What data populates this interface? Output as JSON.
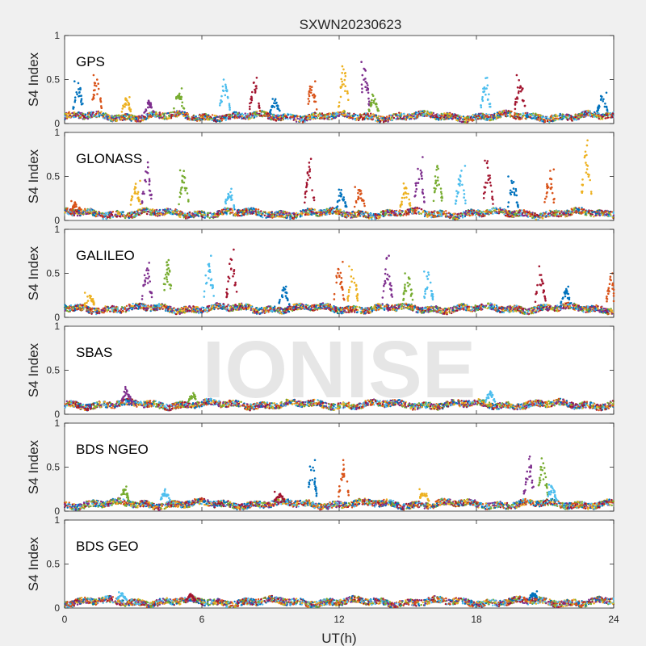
{
  "chart_data": {
    "type": "scatter",
    "title": "SXWN20230623",
    "xlabel": "UT(h)",
    "ylabel": "S4 Index",
    "xlim": [
      0,
      24
    ],
    "ylim": [
      0,
      1
    ],
    "x_ticks": [
      "0",
      "6",
      "12",
      "18",
      "24"
    ],
    "y_ticks": [
      "0",
      "0.5",
      "1"
    ],
    "watermark": "IONISE",
    "grid": false,
    "colors": [
      "#0072bd",
      "#d95319",
      "#edb120",
      "#7e2f8e",
      "#77ac30",
      "#4dbeee",
      "#a2142f"
    ],
    "panels": [
      {
        "label": "GPS",
        "baseline": 0.08,
        "spikes": [
          {
            "x": 0.6,
            "y": 0.48
          },
          {
            "x": 1.4,
            "y": 0.55
          },
          {
            "x": 2.7,
            "y": 0.3
          },
          {
            "x": 3.7,
            "y": 0.26
          },
          {
            "x": 5.0,
            "y": 0.4
          },
          {
            "x": 7.0,
            "y": 0.5
          },
          {
            "x": 8.3,
            "y": 0.52
          },
          {
            "x": 9.2,
            "y": 0.28
          },
          {
            "x": 10.8,
            "y": 0.48
          },
          {
            "x": 12.2,
            "y": 0.65
          },
          {
            "x": 13.1,
            "y": 0.7
          },
          {
            "x": 13.5,
            "y": 0.33
          },
          {
            "x": 18.4,
            "y": 0.52
          },
          {
            "x": 19.9,
            "y": 0.55
          },
          {
            "x": 23.5,
            "y": 0.35
          }
        ]
      },
      {
        "label": "GLONASS",
        "baseline": 0.08,
        "spikes": [
          {
            "x": 0.5,
            "y": 0.22
          },
          {
            "x": 3.1,
            "y": 0.45
          },
          {
            "x": 3.6,
            "y": 0.66
          },
          {
            "x": 5.2,
            "y": 0.57
          },
          {
            "x": 7.2,
            "y": 0.36
          },
          {
            "x": 10.7,
            "y": 0.7
          },
          {
            "x": 12.1,
            "y": 0.35
          },
          {
            "x": 12.9,
            "y": 0.38
          },
          {
            "x": 14.9,
            "y": 0.42
          },
          {
            "x": 15.5,
            "y": 0.72
          },
          {
            "x": 16.3,
            "y": 0.62
          },
          {
            "x": 17.3,
            "y": 0.62
          },
          {
            "x": 18.5,
            "y": 0.68
          },
          {
            "x": 19.6,
            "y": 0.5
          },
          {
            "x": 21.2,
            "y": 0.58
          },
          {
            "x": 22.8,
            "y": 0.91
          }
        ]
      },
      {
        "label": "GALILEO",
        "baseline": 0.1,
        "spikes": [
          {
            "x": 1.1,
            "y": 0.28
          },
          {
            "x": 3.6,
            "y": 0.62
          },
          {
            "x": 4.5,
            "y": 0.65
          },
          {
            "x": 6.3,
            "y": 0.7
          },
          {
            "x": 7.3,
            "y": 0.77
          },
          {
            "x": 9.6,
            "y": 0.35
          },
          {
            "x": 12.0,
            "y": 0.63
          },
          {
            "x": 12.6,
            "y": 0.58
          },
          {
            "x": 14.1,
            "y": 0.7
          },
          {
            "x": 15.0,
            "y": 0.5
          },
          {
            "x": 15.9,
            "y": 0.52
          },
          {
            "x": 20.8,
            "y": 0.58
          },
          {
            "x": 21.9,
            "y": 0.35
          },
          {
            "x": 23.9,
            "y": 0.5
          }
        ]
      },
      {
        "label": "SBAS",
        "baseline": 0.11,
        "spikes": [
          {
            "x": 2.7,
            "y": 0.31
          },
          {
            "x": 5.6,
            "y": 0.24
          },
          {
            "x": 18.6,
            "y": 0.26
          }
        ]
      },
      {
        "label": "BDS NGEO",
        "baseline": 0.08,
        "spikes": [
          {
            "x": 2.6,
            "y": 0.28
          },
          {
            "x": 4.4,
            "y": 0.25
          },
          {
            "x": 9.4,
            "y": 0.22
          },
          {
            "x": 10.8,
            "y": 0.58
          },
          {
            "x": 12.2,
            "y": 0.58
          },
          {
            "x": 15.7,
            "y": 0.25
          },
          {
            "x": 20.3,
            "y": 0.62
          },
          {
            "x": 20.9,
            "y": 0.6
          },
          {
            "x": 21.3,
            "y": 0.3
          }
        ]
      },
      {
        "label": "BDS GEO",
        "baseline": 0.07,
        "spikes": [
          {
            "x": 2.5,
            "y": 0.18
          },
          {
            "x": 5.5,
            "y": 0.16
          },
          {
            "x": 20.5,
            "y": 0.19
          }
        ]
      }
    ]
  }
}
